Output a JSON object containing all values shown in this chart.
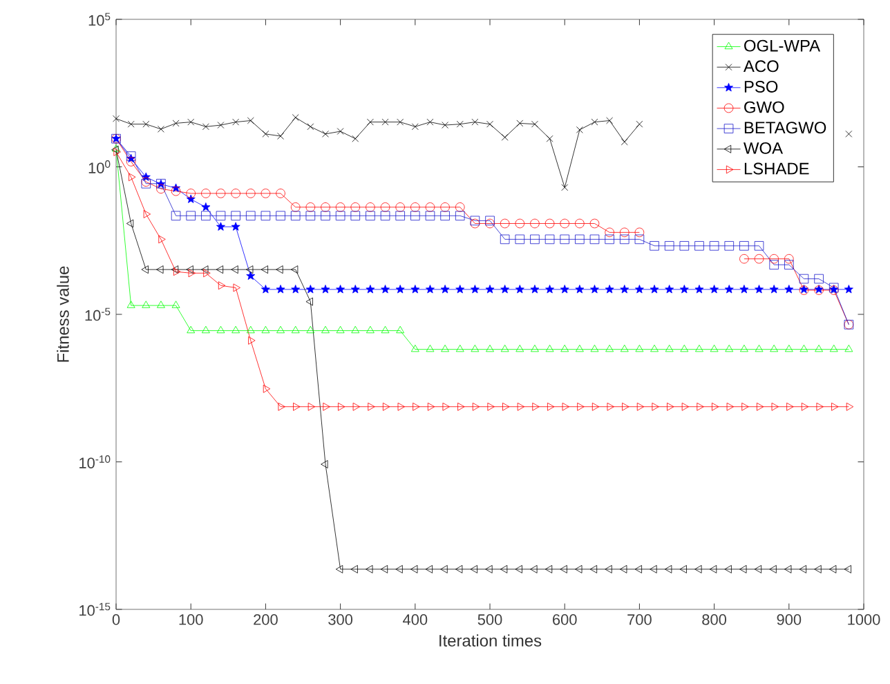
{
  "chart_data": {
    "type": "line",
    "xlabel": "Iteration times",
    "ylabel": "Fitness value",
    "log": "y",
    "x": [
      0,
      20,
      40,
      60,
      80,
      100,
      120,
      140,
      160,
      180,
      200,
      220,
      240,
      260,
      280,
      300,
      320,
      340,
      360,
      380,
      400,
      420,
      440,
      460,
      480,
      500,
      520,
      540,
      560,
      580,
      600,
      620,
      640,
      660,
      680,
      700,
      720,
      740,
      760,
      780,
      800,
      820,
      840,
      860,
      880,
      900,
      920,
      940,
      960,
      980
    ],
    "xlim": [
      0,
      1000
    ],
    "xticks": [
      0,
      100,
      200,
      300,
      400,
      500,
      600,
      700,
      800,
      900,
      1000
    ],
    "ylim": [
      1e-15,
      100000.0
    ],
    "yticks": [
      {
        "value": 1e-15,
        "label": "10$^{-15}$"
      },
      {
        "value": 1e-10,
        "label": "10$^{-10}$"
      },
      {
        "value": 1e-05,
        "label": "10$^{-5}$"
      },
      {
        "value": 1,
        "label": "10$^{0}$"
      },
      {
        "value": 100000.0,
        "label": "10$^{5}$"
      }
    ],
    "grid": false,
    "legend": "top right",
    "line_style": "solid",
    "series": [
      {
        "name": "OGL-WPA",
        "color": "#00ff00",
        "marker": "triangle",
        "values": [
          4,
          2e-05,
          2e-05,
          2e-05,
          2e-05,
          2.8e-06,
          2.8e-06,
          2.8e-06,
          2.8e-06,
          2.8e-06,
          2.8e-06,
          2.8e-06,
          2.8e-06,
          2.8e-06,
          2.8e-06,
          2.8e-06,
          2.8e-06,
          2.8e-06,
          2.8e-06,
          2.8e-06,
          6.5e-07,
          6.5e-07,
          6.5e-07,
          6.5e-07,
          6.5e-07,
          6.5e-07,
          6.5e-07,
          6.5e-07,
          6.5e-07,
          6.5e-07,
          6.5e-07,
          6.5e-07,
          6.5e-07,
          6.5e-07,
          6.5e-07,
          6.5e-07,
          6.5e-07,
          6.5e-07,
          6.5e-07,
          6.5e-07,
          6.5e-07,
          6.5e-07,
          6.5e-07,
          6.5e-07,
          6.5e-07,
          6.5e-07,
          6.5e-07,
          6.5e-07,
          6.5e-07,
          6.5e-07
        ]
      },
      {
        "name": "ACO",
        "color": "#000000",
        "marker": "cross",
        "values": [
          43,
          28,
          28,
          19,
          30,
          33,
          23,
          26,
          33,
          37,
          13,
          11,
          47,
          23,
          13,
          16,
          9,
          33,
          33,
          33,
          23,
          33,
          26,
          28,
          33,
          28,
          10,
          30,
          28,
          9,
          0.2,
          18,
          33,
          37,
          7,
          28,
          null,
          null,
          null,
          null,
          null,
          null,
          null,
          null,
          null,
          null,
          null,
          null,
          null,
          13
        ]
      },
      {
        "name": "PSO",
        "color": "#0000ff",
        "marker": "star",
        "values": [
          9,
          1.9,
          0.45,
          0.26,
          0.19,
          0.08,
          0.043,
          0.0093,
          0.0093,
          0.0002,
          7e-05,
          7e-05,
          7e-05,
          7e-05,
          7e-05,
          7e-05,
          7e-05,
          7e-05,
          7e-05,
          7e-05,
          7e-05,
          7e-05,
          7e-05,
          7e-05,
          7e-05,
          7e-05,
          7e-05,
          7e-05,
          7e-05,
          7e-05,
          7e-05,
          7e-05,
          7e-05,
          7e-05,
          7e-05,
          7e-05,
          7e-05,
          7e-05,
          7e-05,
          7e-05,
          7e-05,
          7e-05,
          7e-05,
          7e-05,
          7e-05,
          7e-05,
          7e-05,
          7e-05,
          7e-05,
          7e-05
        ]
      },
      {
        "name": "GWO",
        "color": "#ff0000",
        "marker": "circle",
        "values": [
          9,
          1.5,
          0.31,
          0.18,
          0.15,
          0.126,
          0.126,
          0.126,
          0.126,
          0.126,
          0.126,
          0.126,
          0.043,
          0.043,
          0.043,
          0.043,
          0.043,
          0.043,
          0.043,
          0.043,
          0.043,
          0.043,
          0.043,
          0.043,
          0.012,
          0.012,
          0.012,
          0.012,
          0.012,
          0.012,
          0.012,
          0.012,
          0.012,
          0.006,
          0.006,
          0.006,
          null,
          null,
          null,
          null,
          null,
          null,
          0.00076,
          0.00076,
          0.00076,
          0.00076,
          6.6e-05,
          6.6e-05,
          6.6e-05,
          4.5e-06
        ]
      },
      {
        "name": "BETAGWO",
        "color": "#1a1acc",
        "marker": "square",
        "values": [
          9,
          2.3,
          0.27,
          0.27,
          0.022,
          0.022,
          0.022,
          0.022,
          0.022,
          0.022,
          0.022,
          0.022,
          0.022,
          0.022,
          0.022,
          0.022,
          0.022,
          0.022,
          0.022,
          0.022,
          0.022,
          0.022,
          0.022,
          0.022,
          0.015,
          0.015,
          0.0035,
          0.0035,
          0.0035,
          0.0035,
          0.0035,
          0.0035,
          0.0035,
          0.0035,
          0.0035,
          0.0035,
          0.0021,
          0.0021,
          0.0021,
          0.0021,
          0.0021,
          0.0021,
          0.0021,
          0.0021,
          0.00048,
          0.00048,
          0.00016,
          0.00016,
          8e-05,
          4.5e-06
        ]
      },
      {
        "name": "WOA",
        "color": "#000000",
        "marker": "triangle-left",
        "values": [
          3.8,
          0.012,
          0.00033,
          0.00033,
          0.00033,
          0.00033,
          0.00033,
          0.00033,
          0.00033,
          0.00033,
          0.00033,
          0.00033,
          0.00033,
          2.7e-05,
          8.3e-11,
          2.3e-14,
          2.3e-14,
          2.3e-14,
          2.3e-14,
          2.3e-14,
          2.3e-14,
          2.3e-14,
          2.3e-14,
          2.3e-14,
          2.3e-14,
          2.3e-14,
          2.3e-14,
          2.3e-14,
          2.3e-14,
          2.3e-14,
          2.3e-14,
          2.3e-14,
          2.3e-14,
          2.3e-14,
          2.3e-14,
          2.3e-14,
          2.3e-14,
          2.3e-14,
          2.3e-14,
          2.3e-14,
          2.3e-14,
          2.3e-14,
          2.3e-14,
          2.3e-14,
          2.3e-14,
          2.3e-14,
          2.3e-14,
          2.3e-14,
          2.3e-14,
          2.3e-14
        ]
      },
      {
        "name": "LSHADE",
        "color": "#ff0000",
        "marker": "triangle-right",
        "values": [
          3.2,
          0.45,
          0.025,
          0.0035,
          0.00028,
          0.00025,
          0.00025,
          9.5e-05,
          8e-05,
          1.3e-06,
          3e-08,
          7.4e-09,
          7.4e-09,
          7.4e-09,
          7.4e-09,
          7.4e-09,
          7.4e-09,
          7.4e-09,
          7.4e-09,
          7.4e-09,
          7.4e-09,
          7.4e-09,
          7.4e-09,
          7.4e-09,
          7.4e-09,
          7.4e-09,
          7.4e-09,
          7.4e-09,
          7.4e-09,
          7.4e-09,
          7.4e-09,
          7.4e-09,
          7.4e-09,
          7.4e-09,
          7.4e-09,
          7.4e-09,
          7.4e-09,
          7.4e-09,
          7.4e-09,
          7.4e-09,
          7.4e-09,
          7.4e-09,
          7.4e-09,
          7.4e-09,
          7.4e-09,
          7.4e-09,
          7.4e-09,
          7.4e-09,
          7.4e-09,
          7.4e-09
        ]
      }
    ]
  }
}
